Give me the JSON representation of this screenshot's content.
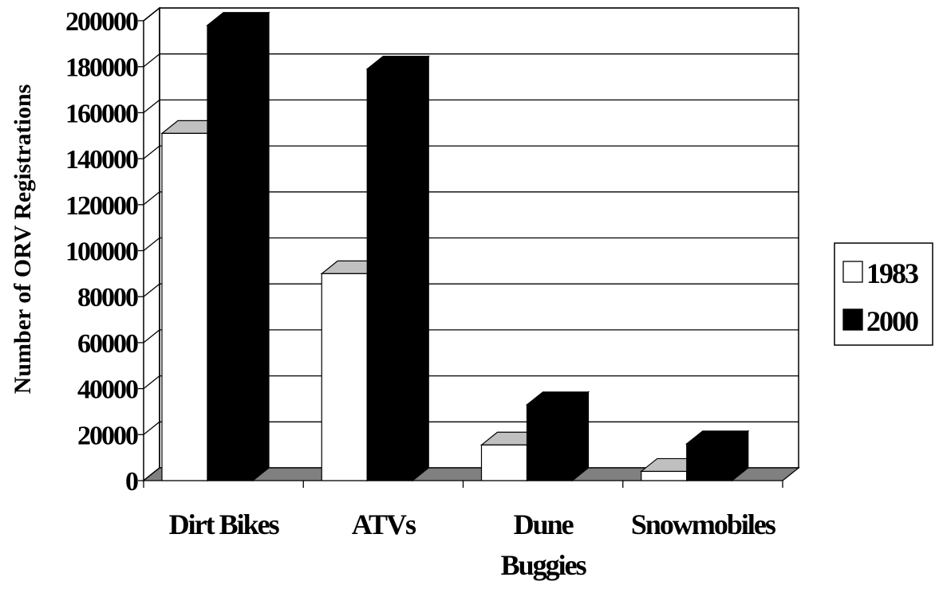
{
  "chart_data": {
    "type": "bar",
    "categories": [
      "Dirt Bikes",
      "ATVs",
      "Dune Buggies",
      "Snowmobiles"
    ],
    "category_lines": [
      [
        "Dirt Bikes"
      ],
      [
        "ATVs"
      ],
      [
        "Dune",
        "Buggies"
      ],
      [
        "Snowmobiles"
      ]
    ],
    "series": [
      {
        "name": "1983",
        "values": [
          151000,
          90000,
          15500,
          4000
        ],
        "color": "#ffffff"
      },
      {
        "name": "2000",
        "values": [
          198000,
          179000,
          33000,
          16000
        ],
        "color": "#000000"
      }
    ],
    "ylabel": "Number of ORV Registrations",
    "xlabel": "",
    "ylim": [
      0,
      200000
    ],
    "yticks": [
      "0",
      "20000",
      "40000",
      "60000",
      "80000",
      "100000",
      "120000",
      "140000",
      "160000",
      "180000",
      "200000"
    ],
    "grid": true,
    "legend_position": "right",
    "colors": {
      "floor": "#808080",
      "bar_top_light": "#c0c0c0",
      "bar_top_dark": "#000000"
    }
  }
}
